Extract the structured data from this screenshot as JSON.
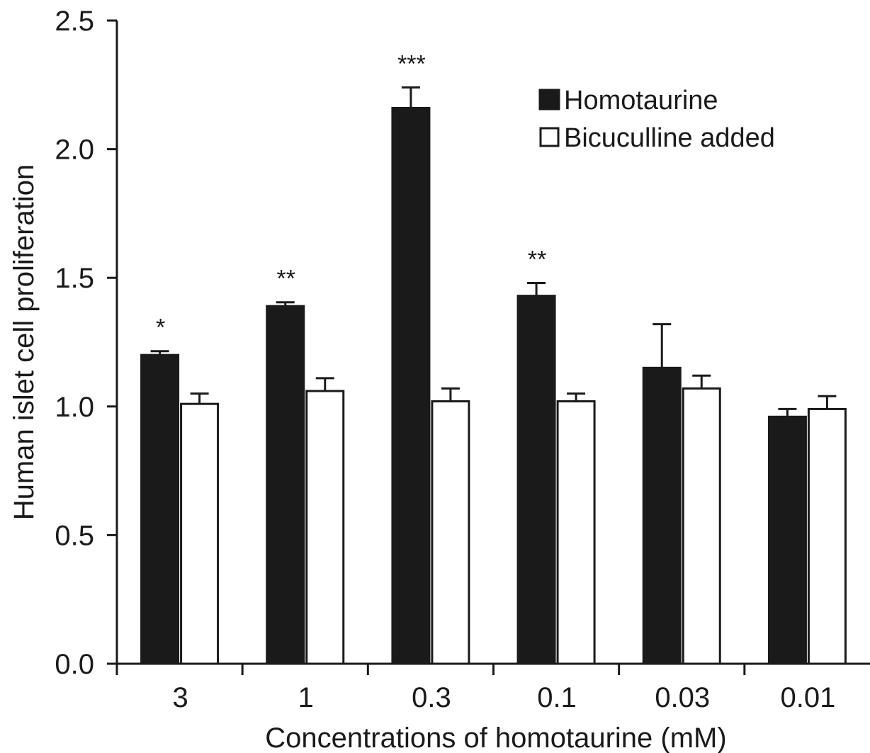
{
  "chart_data": {
    "type": "bar",
    "title": "",
    "xlabel": "Concentrations of homotaurine (mM)",
    "ylabel": "Human islet cell proliferation",
    "categories": [
      "3",
      "1",
      "0.3",
      "0.1",
      "0.03",
      "0.01"
    ],
    "ylim": [
      0,
      2.5
    ],
    "yticks": [
      "0.0",
      "0.5",
      "1.0",
      "1.5",
      "2.0",
      "2.5"
    ],
    "ytick_values": [
      0,
      0.5,
      1.0,
      1.5,
      2.0,
      2.5
    ],
    "series": [
      {
        "name": "Homotaurine",
        "color": "#1a1a1a",
        "values": [
          1.2,
          1.39,
          2.16,
          1.43,
          1.15,
          0.96
        ],
        "errors": [
          0.015,
          0.015,
          0.08,
          0.05,
          0.17,
          0.03
        ]
      },
      {
        "name": "Bicuculline added",
        "color": "#ffffff",
        "values": [
          1.01,
          1.06,
          1.02,
          1.02,
          1.07,
          0.99
        ],
        "errors": [
          0.04,
          0.05,
          0.05,
          0.03,
          0.05,
          0.05
        ]
      }
    ],
    "significance": [
      "*",
      "**",
      "***",
      "**",
      "",
      ""
    ],
    "grid": false,
    "legend": "top-right"
  }
}
